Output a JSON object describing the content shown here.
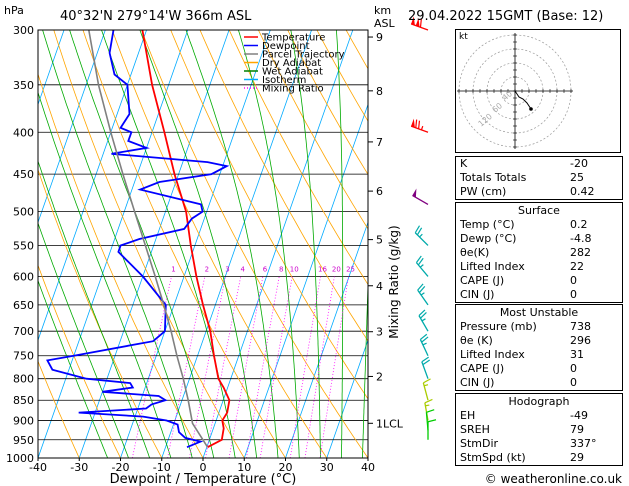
{
  "header": {
    "station": "40°32'N  279°14'W  366m  ASL",
    "date": "29.04.2022  15GMT  (Base: 12)",
    "left_unit": "hPa",
    "right_unit_km": "km",
    "right_unit_asl": "ASL",
    "mixing_axis_label": "Mixing Ratio (g/kg)"
  },
  "chart_data": {
    "type": "line",
    "title": "Skew-T log-P diagram",
    "xlabel": "Dewpoint / Temperature (°C)",
    "ylabel": "hPa",
    "x_ticks": [
      -40,
      -30,
      -20,
      -10,
      0,
      10,
      20,
      30,
      40
    ],
    "x_tick_labels": [
      "-40",
      "-30",
      "-20",
      "-10",
      "0",
      "10",
      "20",
      "30",
      "40"
    ],
    "pressure_levels": [
      300,
      350,
      400,
      450,
      500,
      550,
      600,
      650,
      700,
      750,
      800,
      850,
      900,
      950,
      1000
    ],
    "pressure_labels": [
      "300",
      "350",
      "400",
      "450",
      "500",
      "550",
      "600",
      "650",
      "700",
      "750",
      "800",
      "850",
      "900",
      "950",
      "1000"
    ],
    "xlim": [
      -40,
      40
    ],
    "plim": [
      300,
      1000
    ],
    "km_ticks": [
      {
        "p": 306,
        "label": "9"
      },
      {
        "p": 356,
        "label": "8"
      },
      {
        "p": 411,
        "label": "7"
      },
      {
        "p": 472,
        "label": "6"
      },
      {
        "p": 541,
        "label": "5"
      },
      {
        "p": 616,
        "label": "4"
      },
      {
        "p": 701,
        "label": "3"
      },
      {
        "p": 795,
        "label": "2"
      },
      {
        "p": 907,
        "label": "1LCL"
      }
    ],
    "legend": [
      {
        "name": "Temperature",
        "color": "#ff0000"
      },
      {
        "name": "Dewpoint",
        "color": "#0000ff"
      },
      {
        "name": "Parcel Trajectory",
        "color": "#808080"
      },
      {
        "name": "Dry Adiabat",
        "color": "#ffa500"
      },
      {
        "name": "Wet Adiabat",
        "color": "#008000"
      },
      {
        "name": "Isotherm",
        "color": "#00aaff"
      },
      {
        "name": "Mixing Ratio",
        "color": "#ff00ff"
      }
    ],
    "mixing_ratio_labels": [
      "1",
      "2",
      "3",
      "4",
      "6",
      "8",
      "10",
      "16",
      "20",
      "25"
    ],
    "mixing_ratio_values": [
      1,
      2,
      3,
      4,
      6,
      8,
      10,
      16,
      20,
      25
    ],
    "series": [
      {
        "name": "Temperature",
        "color": "#ff0000",
        "points": [
          [
            970,
            0.2
          ],
          [
            950,
            3
          ],
          [
            920,
            2.5
          ],
          [
            900,
            1.5
          ],
          [
            880,
            2
          ],
          [
            850,
            1.5
          ],
          [
            820,
            -1
          ],
          [
            800,
            -3
          ],
          [
            750,
            -6
          ],
          [
            700,
            -9
          ],
          [
            650,
            -13
          ],
          [
            600,
            -17
          ],
          [
            550,
            -21
          ],
          [
            500,
            -25
          ],
          [
            450,
            -31
          ],
          [
            400,
            -37
          ],
          [
            350,
            -44
          ],
          [
            300,
            -51
          ]
        ]
      },
      {
        "name": "Dewpoint",
        "color": "#0000ff",
        "points": [
          [
            970,
            -4.8
          ],
          [
            955,
            -2
          ],
          [
            945,
            -6
          ],
          [
            930,
            -8
          ],
          [
            910,
            -9
          ],
          [
            900,
            -12
          ],
          [
            890,
            -18
          ],
          [
            880,
            -34
          ],
          [
            870,
            -18
          ],
          [
            860,
            -17
          ],
          [
            850,
            -14
          ],
          [
            840,
            -16
          ],
          [
            830,
            -30
          ],
          [
            820,
            -23
          ],
          [
            810,
            -24
          ],
          [
            800,
            -35
          ],
          [
            780,
            -44
          ],
          [
            760,
            -46
          ],
          [
            750,
            -40
          ],
          [
            720,
            -22
          ],
          [
            700,
            -20
          ],
          [
            650,
            -22
          ],
          [
            600,
            -30
          ],
          [
            560,
            -38
          ],
          [
            550,
            -38
          ],
          [
            540,
            -34
          ],
          [
            525,
            -24
          ],
          [
            510,
            -23
          ],
          [
            500,
            -21
          ],
          [
            490,
            -22
          ],
          [
            470,
            -38
          ],
          [
            460,
            -34
          ],
          [
            450,
            -22
          ],
          [
            440,
            -19
          ],
          [
            435,
            -24
          ],
          [
            425,
            -48
          ],
          [
            418,
            -40
          ],
          [
            410,
            -45
          ],
          [
            400,
            -45
          ],
          [
            395,
            -48
          ],
          [
            380,
            -47
          ],
          [
            350,
            -50
          ],
          [
            340,
            -54
          ],
          [
            320,
            -57
          ],
          [
            300,
            -58
          ]
        ]
      },
      {
        "name": "Parcel Trajectory",
        "color": "#808080",
        "points": [
          [
            970,
            0.2
          ],
          [
            907,
            -5.5
          ],
          [
            850,
            -8.5
          ],
          [
            800,
            -11.5
          ],
          [
            750,
            -15
          ],
          [
            700,
            -18.5
          ],
          [
            650,
            -22.5
          ],
          [
            600,
            -27
          ],
          [
            550,
            -32
          ],
          [
            500,
            -37.5
          ],
          [
            450,
            -43.5
          ],
          [
            400,
            -50
          ],
          [
            350,
            -57
          ],
          [
            300,
            -64
          ]
        ]
      }
    ],
    "wind_barbs": [
      {
        "p": 300,
        "dir": 290,
        "speed": 110,
        "color": "#ff0000"
      },
      {
        "p": 400,
        "dir": 290,
        "speed": 75,
        "color": "#ff0000"
      },
      {
        "p": 490,
        "dir": 300,
        "speed": 50,
        "color": "#800080"
      },
      {
        "p": 550,
        "dir": 315,
        "speed": 25,
        "color": "#00aaaa"
      },
      {
        "p": 600,
        "dir": 320,
        "speed": 25,
        "color": "#00aaaa"
      },
      {
        "p": 650,
        "dir": 325,
        "speed": 25,
        "color": "#00aaaa"
      },
      {
        "p": 700,
        "dir": 330,
        "speed": 25,
        "color": "#00aaaa"
      },
      {
        "p": 750,
        "dir": 335,
        "speed": 25,
        "color": "#00aaaa"
      },
      {
        "p": 800,
        "dir": 340,
        "speed": 20,
        "color": "#00aaaa"
      },
      {
        "p": 850,
        "dir": 345,
        "speed": 15,
        "color": "#aacc00"
      },
      {
        "p": 900,
        "dir": 350,
        "speed": 15,
        "color": "#aacc00"
      },
      {
        "p": 925,
        "dir": 355,
        "speed": 10,
        "color": "#00cc00"
      },
      {
        "p": 950,
        "dir": 0,
        "speed": 10,
        "color": "#00cc00"
      }
    ],
    "hodograph": {
      "unit_label": "kt",
      "ring_labels": [
        "40",
        "60",
        "120"
      ],
      "points": [
        [
          0,
          0
        ],
        [
          2,
          -3
        ],
        [
          4,
          -6
        ],
        [
          8,
          -8
        ],
        [
          12,
          -12
        ],
        [
          16,
          -18
        ]
      ]
    }
  },
  "indices": {
    "rows": [
      {
        "label": "K",
        "value": "-20"
      },
      {
        "label": "Totals Totals",
        "value": "25"
      },
      {
        "label": "PW (cm)",
        "value": "0.42"
      }
    ]
  },
  "surface": {
    "title": "Surface",
    "rows": [
      {
        "label": "Temp (°C)",
        "value": "0.2"
      },
      {
        "label": "Dewp (°C)",
        "value": "-4.8"
      },
      {
        "label": "θe(K)",
        "value": "282"
      },
      {
        "label": "Lifted Index",
        "value": "22"
      },
      {
        "label": "CAPE (J)",
        "value": "0"
      },
      {
        "label": "CIN (J)",
        "value": "0"
      }
    ]
  },
  "unstable": {
    "title": "Most Unstable",
    "rows": [
      {
        "label": "Pressure (mb)",
        "value": "738"
      },
      {
        "label": "θe (K)",
        "value": "296"
      },
      {
        "label": "Lifted Index",
        "value": "31"
      },
      {
        "label": "CAPE (J)",
        "value": "0"
      },
      {
        "label": "CIN (J)",
        "value": "0"
      }
    ]
  },
  "hodo_table": {
    "title": "Hodograph",
    "rows": [
      {
        "label": "EH",
        "value": "-49"
      },
      {
        "label": "SREH",
        "value": "79"
      },
      {
        "label": "StmDir",
        "value": "337°"
      },
      {
        "label": "StmSpd (kt)",
        "value": "29"
      }
    ]
  },
  "footer": {
    "copyright": "© weatheronline.co.uk"
  }
}
